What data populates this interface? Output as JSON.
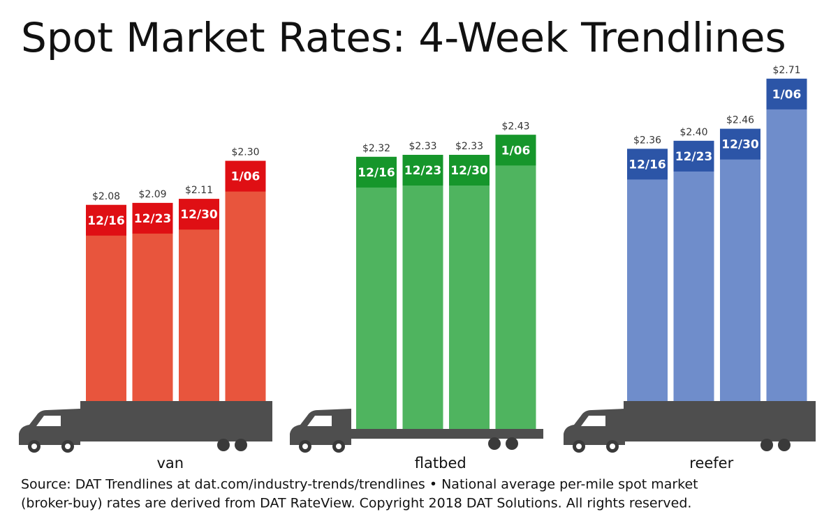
{
  "title": "Spot Market Rates: 4-Week Trendlines",
  "source": [
    "Source: DAT Trendlines at dat.com/industry-trends/trendlines • National average per-mile spot market",
    "(broker-buy) rates are derived from DAT RateView. Copyright 2018 DAT Solutions. All rights reserved."
  ],
  "chart_data": [
    {
      "type": "bar",
      "title": "van",
      "categories": [
        "12/16",
        "12/23",
        "12/30",
        "1/06"
      ],
      "values": [
        2.08,
        2.09,
        2.11,
        2.3
      ],
      "value_labels": [
        "$2.08",
        "$2.09",
        "$2.11",
        "$2.30"
      ],
      "color": "#e8553d",
      "cap_color": "#df0f14",
      "ylim": [
        1,
        2.8
      ]
    },
    {
      "type": "bar",
      "title": "flatbed",
      "categories": [
        "12/16",
        "12/23",
        "12/30",
        "1/06"
      ],
      "values": [
        2.32,
        2.33,
        2.33,
        2.43
      ],
      "value_labels": [
        "$2.32",
        "$2.33",
        "$2.33",
        "$2.43"
      ],
      "color": "#4fb45f",
      "cap_color": "#16962b",
      "ylim": [
        1,
        2.8
      ]
    },
    {
      "type": "bar",
      "title": "reefer",
      "categories": [
        "12/16",
        "12/23",
        "12/30",
        "1/06"
      ],
      "values": [
        2.36,
        2.4,
        2.46,
        2.71
      ],
      "value_labels": [
        "$2.36",
        "$2.40",
        "$2.46",
        "$2.71"
      ],
      "color": "#6f8dcb",
      "cap_color": "#2c55a7",
      "ylim": [
        1,
        2.8
      ]
    }
  ]
}
